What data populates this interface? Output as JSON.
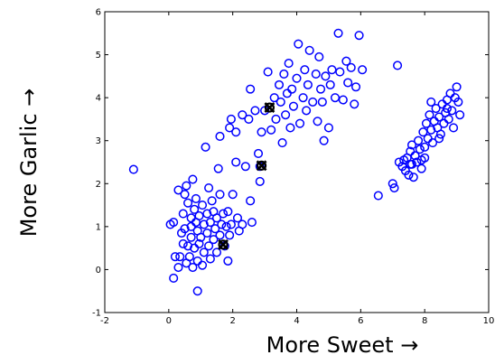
{
  "chart_data": {
    "type": "scatter",
    "title": "",
    "xlabel": "More Sweet →",
    "ylabel": "More Garlic →",
    "xlim": [
      -2,
      10
    ],
    "ylim": [
      -1,
      6
    ],
    "xticks": [
      "-2",
      "0",
      "2",
      "4",
      "6",
      "8",
      "10"
    ],
    "yticks": [
      "-1",
      "0",
      "1",
      "2",
      "3",
      "4",
      "5",
      "6"
    ],
    "grid": false,
    "legend": "none",
    "marker_color": "#0000ff",
    "centroid_color": "#000000",
    "series": [
      {
        "marker": "circle",
        "points": [
          [
            -1.1,
            2.33
          ],
          [
            0.05,
            1.05
          ],
          [
            0.15,
            1.1
          ],
          [
            0.2,
            0.3
          ],
          [
            0.15,
            -0.2
          ],
          [
            0.3,
            1.85
          ],
          [
            0.35,
            0.3
          ],
          [
            0.3,
            0.05
          ],
          [
            0.4,
            0.85
          ],
          [
            0.45,
            0.6
          ],
          [
            0.45,
            1.3
          ],
          [
            0.5,
            1.75
          ],
          [
            0.5,
            0.95
          ],
          [
            0.55,
            1.95
          ],
          [
            0.55,
            0.15
          ],
          [
            0.6,
            0.55
          ],
          [
            0.6,
            1.55
          ],
          [
            0.65,
            0.3
          ],
          [
            0.7,
            1.2
          ],
          [
            0.7,
            0.75
          ],
          [
            0.7,
            1.0
          ],
          [
            0.75,
            2.1
          ],
          [
            0.75,
            0.05
          ],
          [
            0.8,
            1.4
          ],
          [
            0.8,
            0.5
          ],
          [
            0.85,
            1.1
          ],
          [
            0.85,
            1.65
          ],
          [
            0.9,
            0.9
          ],
          [
            0.9,
            0.2
          ],
          [
            0.95,
            0.6
          ],
          [
            0.95,
            1.25
          ],
          [
            0.9,
            -0.5
          ],
          [
            1.0,
            0.75
          ],
          [
            1.05,
            1.5
          ],
          [
            1.05,
            0.1
          ],
          [
            1.1,
            1.05
          ],
          [
            1.1,
            0.4
          ],
          [
            1.15,
            2.85
          ],
          [
            1.2,
            0.85
          ],
          [
            1.2,
            1.3
          ],
          [
            1.25,
            0.55
          ],
          [
            1.25,
            1.9
          ],
          [
            1.3,
            0.25
          ],
          [
            1.3,
            1.1
          ],
          [
            1.35,
            1.6
          ],
          [
            1.4,
            0.7
          ],
          [
            1.4,
            1.35
          ],
          [
            1.45,
            0.95
          ],
          [
            1.5,
            1.2
          ],
          [
            1.5,
            0.4
          ],
          [
            1.55,
            2.35
          ],
          [
            1.6,
            1.75
          ],
          [
            1.6,
            0.8
          ],
          [
            1.65,
            1.05
          ],
          [
            1.7,
            1.3
          ],
          [
            1.75,
            0.55
          ],
          [
            1.8,
            1.0
          ],
          [
            1.85,
            1.35
          ],
          [
            1.85,
            0.2
          ],
          [
            1.9,
            0.8
          ],
          [
            1.95,
            1.05
          ],
          [
            2.0,
            1.75
          ],
          [
            2.1,
            2.5
          ],
          [
            2.15,
            1.2
          ],
          [
            2.2,
            0.9
          ],
          [
            2.3,
            1.05
          ],
          [
            2.55,
            1.6
          ],
          [
            2.6,
            1.1
          ],
          [
            2.85,
            2.05
          ],
          [
            2.4,
            2.4
          ],
          [
            1.9,
            3.3
          ],
          [
            1.6,
            3.1
          ],
          [
            1.95,
            3.5
          ],
          [
            2.1,
            3.2
          ],
          [
            2.3,
            3.6
          ],
          [
            2.5,
            3.5
          ],
          [
            2.55,
            4.2
          ],
          [
            2.7,
            3.7
          ],
          [
            2.8,
            2.7
          ],
          [
            2.85,
            2.4
          ],
          [
            2.9,
            3.2
          ],
          [
            3.0,
            3.7
          ],
          [
            3.1,
            4.6
          ],
          [
            3.2,
            3.25
          ],
          [
            3.3,
            4.0
          ],
          [
            3.35,
            3.5
          ],
          [
            3.45,
            4.3
          ],
          [
            3.5,
            3.9
          ],
          [
            3.55,
            2.95
          ],
          [
            3.6,
            4.55
          ],
          [
            3.65,
            3.6
          ],
          [
            3.7,
            4.1
          ],
          [
            3.75,
            4.8
          ],
          [
            3.8,
            3.3
          ],
          [
            3.85,
            4.2
          ],
          [
            3.9,
            3.8
          ],
          [
            4.0,
            4.45
          ],
          [
            4.05,
            5.25
          ],
          [
            4.1,
            3.4
          ],
          [
            4.2,
            4.0
          ],
          [
            4.25,
            4.65
          ],
          [
            4.3,
            3.7
          ],
          [
            4.35,
            4.3
          ],
          [
            4.4,
            5.1
          ],
          [
            4.5,
            3.9
          ],
          [
            4.6,
            4.55
          ],
          [
            4.65,
            3.45
          ],
          [
            4.7,
            4.95
          ],
          [
            4.75,
            4.2
          ],
          [
            4.8,
            3.9
          ],
          [
            4.85,
            3.0
          ],
          [
            4.9,
            4.5
          ],
          [
            5.0,
            3.3
          ],
          [
            5.05,
            4.3
          ],
          [
            5.1,
            4.65
          ],
          [
            5.2,
            4.0
          ],
          [
            5.3,
            5.5
          ],
          [
            5.35,
            4.6
          ],
          [
            5.45,
            3.95
          ],
          [
            5.55,
            4.85
          ],
          [
            5.6,
            4.35
          ],
          [
            5.7,
            4.7
          ],
          [
            5.8,
            3.85
          ],
          [
            5.85,
            4.25
          ],
          [
            5.95,
            5.45
          ],
          [
            6.05,
            4.65
          ],
          [
            6.55,
            1.72
          ],
          [
            7.0,
            2.0
          ],
          [
            7.05,
            1.9
          ],
          [
            7.15,
            4.75
          ],
          [
            7.2,
            2.5
          ],
          [
            7.3,
            2.4
          ],
          [
            7.35,
            2.55
          ],
          [
            7.4,
            2.3
          ],
          [
            7.45,
            2.6
          ],
          [
            7.5,
            2.2
          ],
          [
            7.55,
            2.75
          ],
          [
            7.6,
            2.45
          ],
          [
            7.6,
            2.9
          ],
          [
            7.65,
            2.15
          ],
          [
            7.7,
            2.65
          ],
          [
            7.75,
            2.5
          ],
          [
            7.8,
            3.0
          ],
          [
            7.85,
            2.8
          ],
          [
            7.9,
            2.55
          ],
          [
            7.95,
            3.2
          ],
          [
            8.0,
            2.85
          ],
          [
            8.05,
            3.4
          ],
          [
            8.1,
            3.05
          ],
          [
            8.15,
            3.6
          ],
          [
            8.2,
            3.25
          ],
          [
            8.25,
            2.95
          ],
          [
            8.3,
            3.45
          ],
          [
            8.35,
            3.75
          ],
          [
            8.4,
            3.3
          ],
          [
            8.45,
            3.55
          ],
          [
            8.5,
            3.15
          ],
          [
            8.55,
            3.85
          ],
          [
            8.6,
            3.4
          ],
          [
            8.65,
            3.65
          ],
          [
            8.7,
            3.95
          ],
          [
            8.75,
            3.5
          ],
          [
            8.8,
            4.1
          ],
          [
            8.85,
            3.7
          ],
          [
            8.9,
            3.3
          ],
          [
            8.95,
            4.0
          ],
          [
            9.0,
            4.25
          ],
          [
            9.05,
            3.9
          ],
          [
            9.1,
            3.6
          ],
          [
            8.2,
            3.9
          ],
          [
            7.9,
            2.35
          ],
          [
            8.45,
            3.05
          ],
          [
            7.55,
            2.45
          ],
          [
            8.7,
            3.75
          ],
          [
            8.0,
            2.6
          ]
        ]
      },
      {
        "marker": "x-circle",
        "points": [
          [
            1.7,
            0.58
          ],
          [
            2.9,
            2.42
          ],
          [
            3.15,
            3.77
          ]
        ]
      }
    ]
  }
}
